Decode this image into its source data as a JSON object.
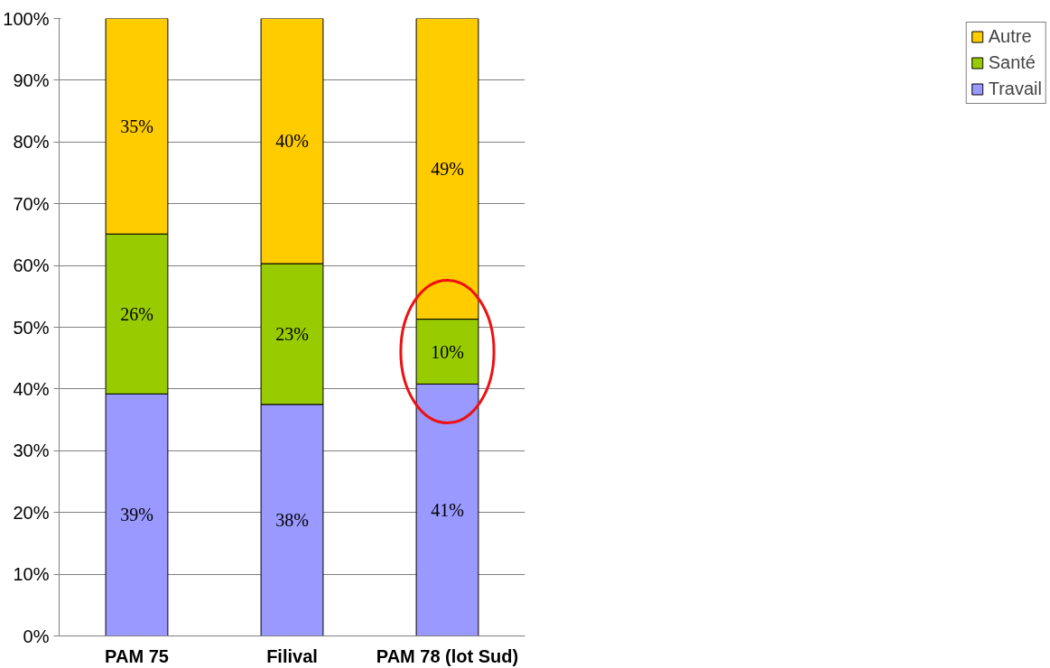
{
  "chart_data": {
    "type": "bar",
    "stacked": true,
    "categories": [
      "PAM 75",
      "Filival",
      "PAM 78 (lot Sud)"
    ],
    "series": [
      {
        "name": "Travail",
        "color": "#9999ff",
        "values": [
          39.2,
          37.5,
          40.8
        ],
        "value_labels": [
          "39%",
          "38%",
          "41%"
        ]
      },
      {
        "name": "Santé",
        "color": "#99cc00",
        "values": [
          25.9,
          22.8,
          10.5
        ],
        "value_labels": [
          "26%",
          "23%",
          "10%"
        ]
      },
      {
        "name": "Autre",
        "color": "#ffcc00",
        "values": [
          34.9,
          39.7,
          48.7
        ],
        "value_labels": [
          "35%",
          "40%",
          "49%"
        ]
      }
    ],
    "ylim": [
      0,
      100
    ],
    "yticks": [
      {
        "value": 0,
        "label": "0%"
      },
      {
        "value": 10,
        "label": "10%"
      },
      {
        "value": 20,
        "label": "20%"
      },
      {
        "value": 30,
        "label": "30%"
      },
      {
        "value": 40,
        "label": "40%"
      },
      {
        "value": 50,
        "label": "50%"
      },
      {
        "value": 60,
        "label": "60%"
      },
      {
        "value": 70,
        "label": "70%"
      },
      {
        "value": 80,
        "label": "80%"
      },
      {
        "value": 90,
        "label": "90%"
      },
      {
        "value": 100,
        "label": "100%"
      }
    ],
    "grid": "y",
    "legend": "right"
  }
}
